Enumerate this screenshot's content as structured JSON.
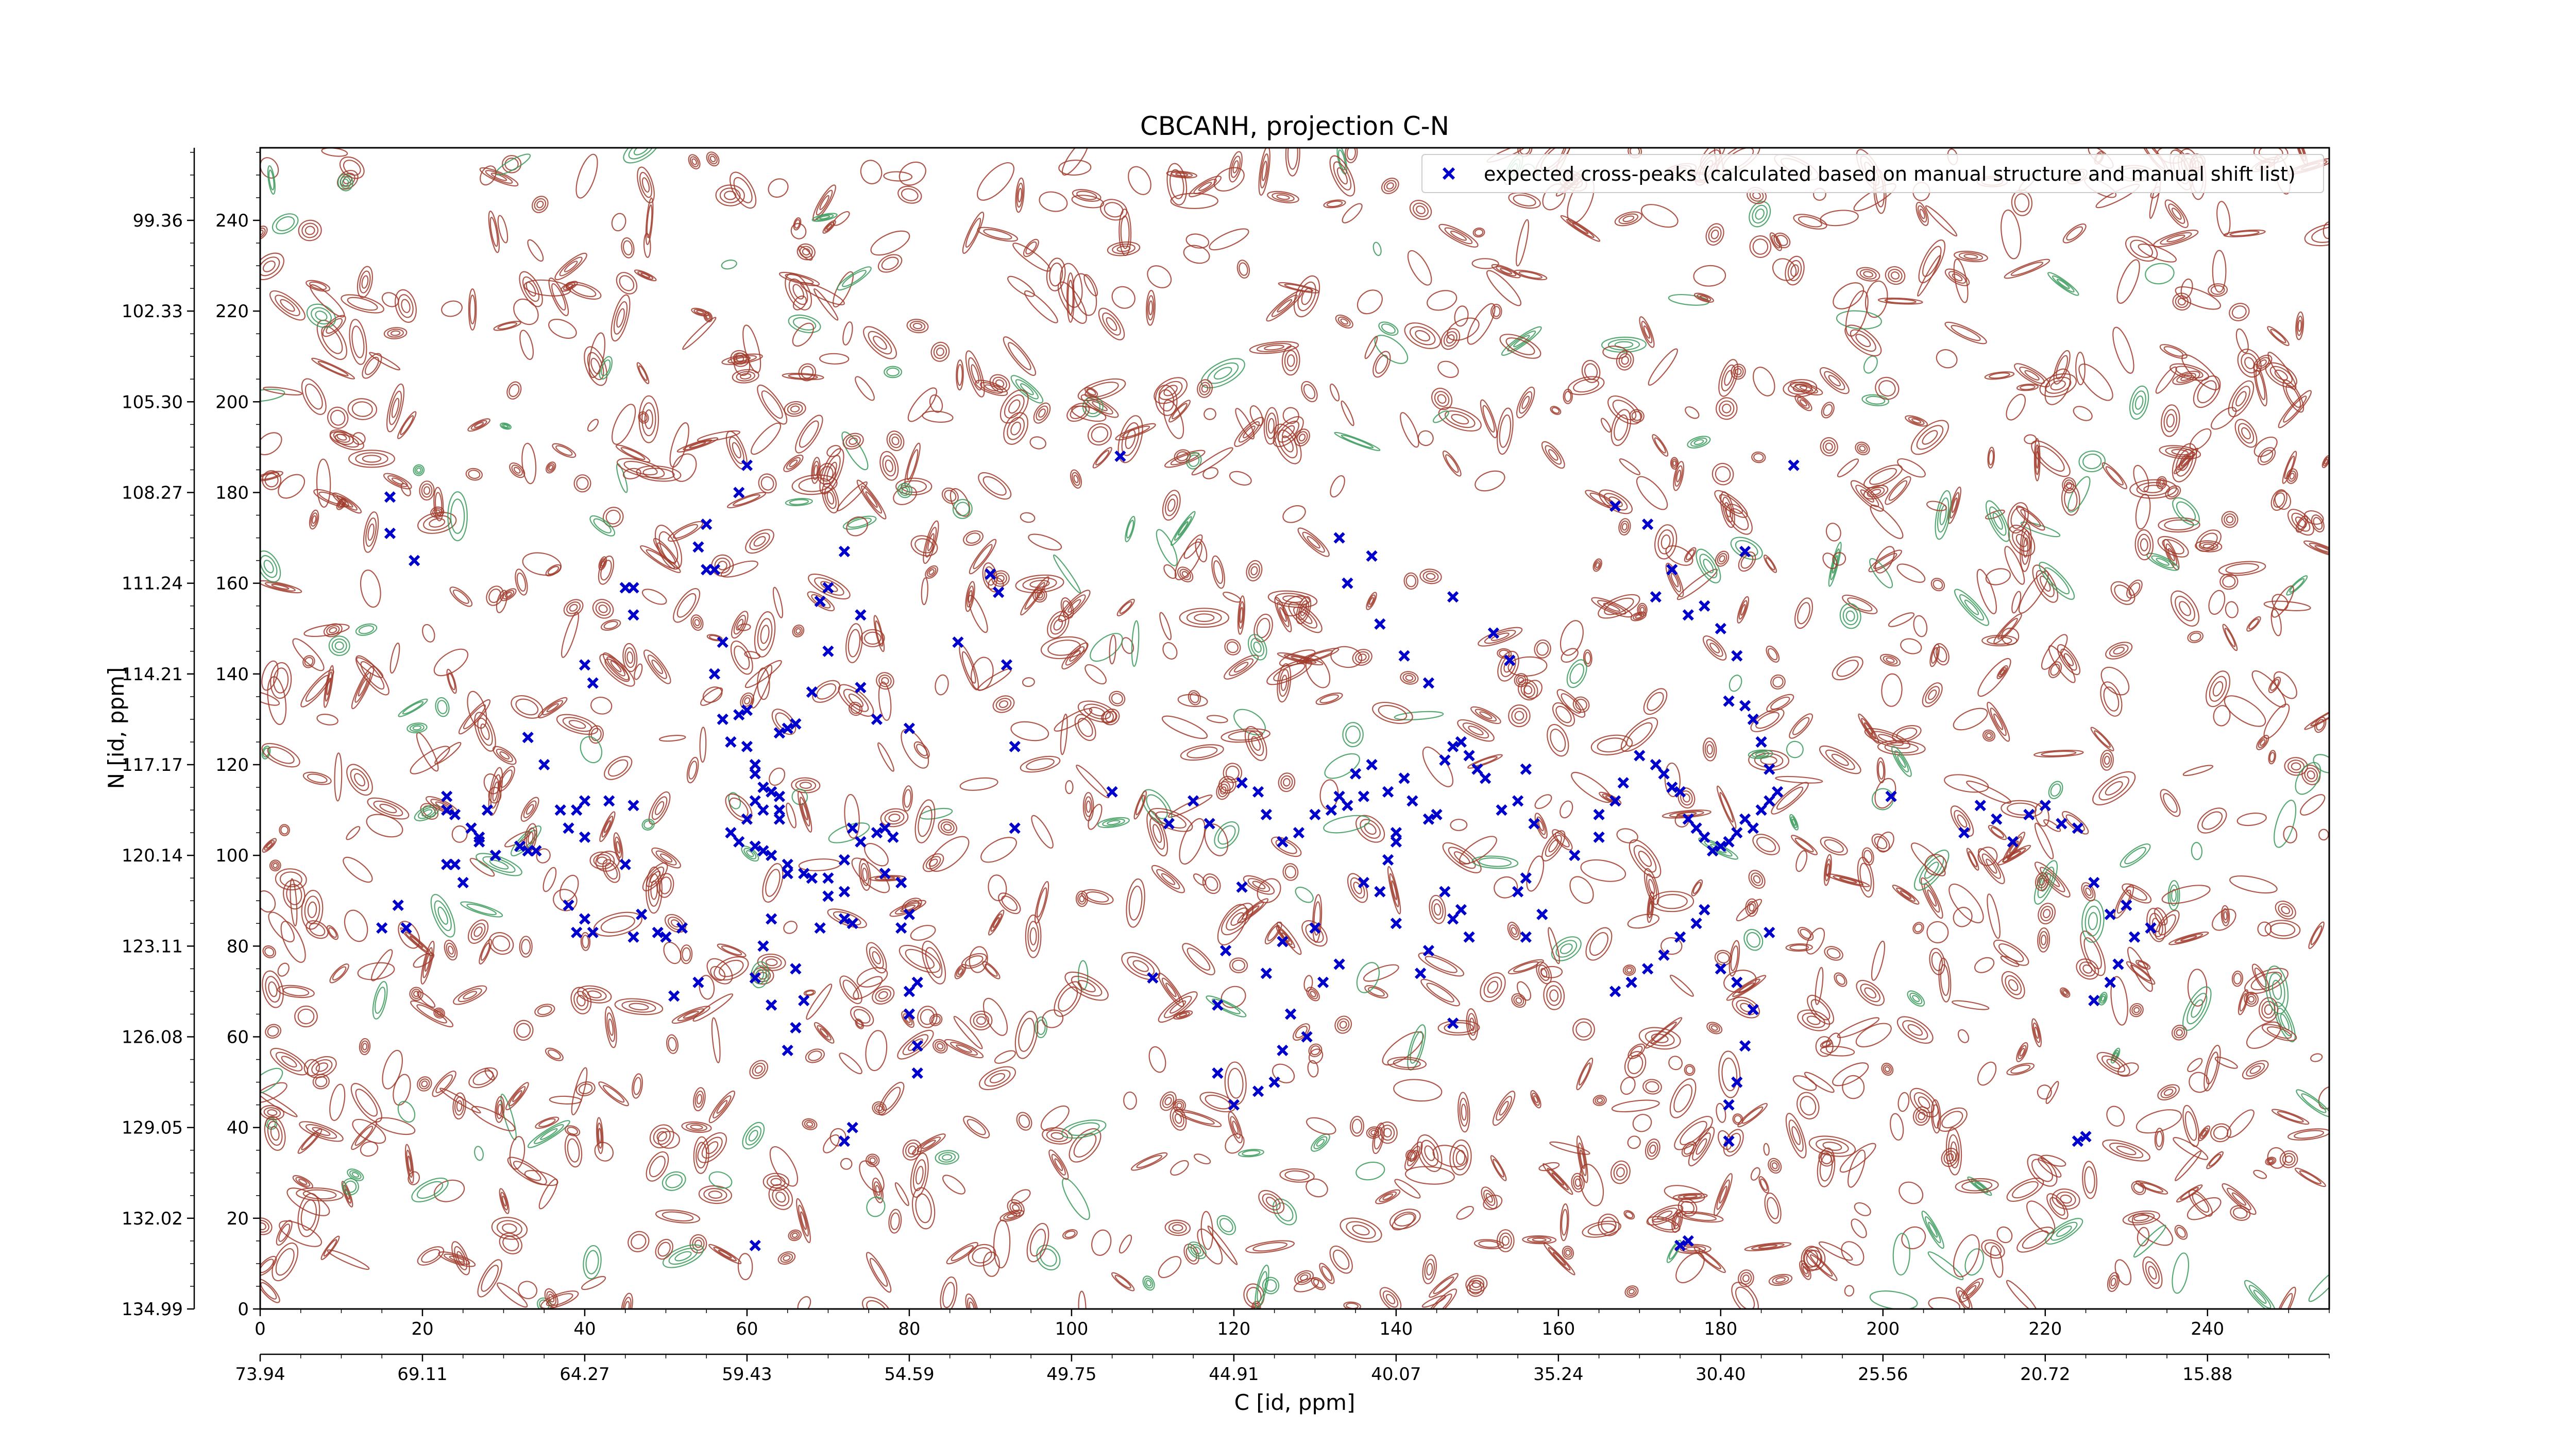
{
  "chart_data": {
    "type": "scatter",
    "title": "CBCANH, projection C-N",
    "xlabel": "C [id, ppm]",
    "ylabel": "N [id, ppm]",
    "xlim": [
      0,
      255
    ],
    "ylim": [
      0,
      256
    ],
    "x_ticks": [
      0,
      20,
      40,
      60,
      80,
      100,
      120,
      140,
      160,
      180,
      200,
      220,
      240
    ],
    "y_ticks": [
      0,
      20,
      40,
      60,
      80,
      100,
      120,
      140,
      160,
      180,
      200,
      220,
      240
    ],
    "x_ppm_ticks": [
      "73.94",
      "69.11",
      "64.27",
      "59.43",
      "54.59",
      "49.75",
      "44.91",
      "40.07",
      "35.24",
      "30.40",
      "25.56",
      "20.72",
      "15.88"
    ],
    "y_ppm_ticks": [
      "134.99",
      "132.02",
      "129.05",
      "126.08",
      "123.11",
      "120.14",
      "117.17",
      "114.21",
      "111.24",
      "108.27",
      "105.30",
      "102.33",
      "99.36"
    ],
    "grid": false,
    "legend_position": "top-right",
    "contour_colors": {
      "positive": "#a03a2a",
      "negative": "#3a9a5a"
    },
    "marker_color": "#0000cc",
    "series": [
      {
        "name": "expected cross-peaks (calculated based on manual structure and manual shift list)",
        "marker": "x",
        "points": [
          [
            16,
            179
          ],
          [
            16,
            171
          ],
          [
            19,
            165
          ],
          [
            17,
            89
          ],
          [
            15,
            84
          ],
          [
            18,
            84
          ],
          [
            23,
            113
          ],
          [
            23,
            110
          ],
          [
            24,
            109
          ],
          [
            26,
            106
          ],
          [
            28,
            110
          ],
          [
            27,
            104
          ],
          [
            27,
            103
          ],
          [
            23,
            98
          ],
          [
            24,
            98
          ],
          [
            25,
            94
          ],
          [
            29,
            100
          ],
          [
            32,
            102
          ],
          [
            33,
            101
          ],
          [
            34,
            101
          ],
          [
            33,
            126
          ],
          [
            35,
            120
          ],
          [
            37,
            110
          ],
          [
            38,
            106
          ],
          [
            40,
            104
          ],
          [
            39,
            110
          ],
          [
            40,
            112
          ],
          [
            40,
            142
          ],
          [
            41,
            138
          ],
          [
            43,
            112
          ],
          [
            38,
            89
          ],
          [
            40,
            86
          ],
          [
            39,
            83
          ],
          [
            41,
            83
          ],
          [
            45,
            159
          ],
          [
            46,
            159
          ],
          [
            46,
            153
          ],
          [
            46,
            111
          ],
          [
            45,
            98
          ],
          [
            47,
            87
          ],
          [
            46,
            82
          ],
          [
            49,
            83
          ],
          [
            50,
            82
          ],
          [
            52,
            84
          ],
          [
            51,
            69
          ],
          [
            54,
            72
          ],
          [
            55,
            163
          ],
          [
            56,
            163
          ],
          [
            54,
            168
          ],
          [
            55,
            173
          ],
          [
            59,
            180
          ],
          [
            60,
            186
          ],
          [
            57,
            147
          ],
          [
            56,
            140
          ],
          [
            57,
            130
          ],
          [
            59,
            131
          ],
          [
            60,
            132
          ],
          [
            58,
            125
          ],
          [
            60,
            124
          ],
          [
            61,
            120
          ],
          [
            61,
            118
          ],
          [
            62,
            115
          ],
          [
            63,
            114
          ],
          [
            64,
            113
          ],
          [
            61,
            112
          ],
          [
            62,
            110
          ],
          [
            64,
            110
          ],
          [
            64,
            108
          ],
          [
            60,
            108
          ],
          [
            58,
            105
          ],
          [
            59,
            103
          ],
          [
            61,
            102
          ],
          [
            62,
            101
          ],
          [
            63,
            100
          ],
          [
            65,
            98
          ],
          [
            67,
            96
          ],
          [
            68,
            95
          ],
          [
            70,
            95
          ],
          [
            72,
            99
          ],
          [
            74,
            103
          ],
          [
            76,
            105
          ],
          [
            77,
            106
          ],
          [
            73,
            106
          ],
          [
            72,
            92
          ],
          [
            70,
            91
          ],
          [
            72,
            86
          ],
          [
            73,
            85
          ],
          [
            69,
            84
          ],
          [
            65,
            96
          ],
          [
            63,
            86
          ],
          [
            62,
            80
          ],
          [
            61,
            73
          ],
          [
            63,
            67
          ],
          [
            65,
            57
          ],
          [
            66,
            62
          ],
          [
            66,
            75
          ],
          [
            67,
            68
          ],
          [
            72,
            37
          ],
          [
            73,
            40
          ],
          [
            61,
            14
          ],
          [
            64,
            127
          ],
          [
            65,
            128
          ],
          [
            66,
            129
          ],
          [
            68,
            136
          ],
          [
            70,
            145
          ],
          [
            70,
            159
          ],
          [
            69,
            156
          ],
          [
            72,
            167
          ],
          [
            74,
            153
          ],
          [
            74,
            137
          ],
          [
            76,
            130
          ],
          [
            80,
            128
          ],
          [
            78,
            104
          ],
          [
            77,
            96
          ],
          [
            79,
            94
          ],
          [
            80,
            87
          ],
          [
            79,
            84
          ],
          [
            81,
            72
          ],
          [
            80,
            70
          ],
          [
            80,
            65
          ],
          [
            81,
            58
          ],
          [
            81,
            52
          ],
          [
            86,
            147
          ],
          [
            91,
            158
          ],
          [
            90,
            162
          ],
          [
            92,
            142
          ],
          [
            93,
            124
          ],
          [
            93,
            106
          ],
          [
            105,
            114
          ],
          [
            106,
            188
          ],
          [
            112,
            107
          ],
          [
            115,
            112
          ],
          [
            117,
            107
          ],
          [
            121,
            116
          ],
          [
            123,
            114
          ],
          [
            124,
            109
          ],
          [
            126,
            103
          ],
          [
            128,
            105
          ],
          [
            130,
            109
          ],
          [
            132,
            110
          ],
          [
            133,
            113
          ],
          [
            134,
            111
          ],
          [
            136,
            113
          ],
          [
            135,
            118
          ],
          [
            137,
            120
          ],
          [
            139,
            114
          ],
          [
            141,
            117
          ],
          [
            142,
            112
          ],
          [
            140,
            103
          ],
          [
            139,
            99
          ],
          [
            140,
            105
          ],
          [
            144,
            108
          ],
          [
            145,
            109
          ],
          [
            146,
            121
          ],
          [
            147,
            124
          ],
          [
            148,
            125
          ],
          [
            149,
            122
          ],
          [
            150,
            119
          ],
          [
            151,
            117
          ],
          [
            153,
            110
          ],
          [
            155,
            112
          ],
          [
            156,
            119
          ],
          [
            157,
            107
          ],
          [
            156,
            95
          ],
          [
            155,
            92
          ],
          [
            156,
            82
          ],
          [
            158,
            87
          ],
          [
            143,
            74
          ],
          [
            144,
            79
          ],
          [
            140,
            85
          ],
          [
            138,
            92
          ],
          [
            136,
            94
          ],
          [
            133,
            76
          ],
          [
            131,
            72
          ],
          [
            129,
            60
          ],
          [
            127,
            65
          ],
          [
            126,
            57
          ],
          [
            125,
            50
          ],
          [
            123,
            48
          ],
          [
            120,
            45
          ],
          [
            118,
            67
          ],
          [
            118,
            52
          ],
          [
            110,
            73
          ],
          [
            121,
            93
          ],
          [
            119,
            79
          ],
          [
            124,
            74
          ],
          [
            126,
            81
          ],
          [
            130,
            84
          ],
          [
            133,
            170
          ],
          [
            134,
            160
          ],
          [
            137,
            166
          ],
          [
            138,
            151
          ],
          [
            141,
            144
          ],
          [
            144,
            138
          ],
          [
            147,
            157
          ],
          [
            152,
            149
          ],
          [
            154,
            143
          ],
          [
            148,
            88
          ],
          [
            146,
            92
          ],
          [
            147,
            86
          ],
          [
            149,
            82
          ],
          [
            162,
            100
          ],
          [
            165,
            104
          ],
          [
            165,
            109
          ],
          [
            167,
            112
          ],
          [
            168,
            116
          ],
          [
            170,
            122
          ],
          [
            172,
            120
          ],
          [
            173,
            118
          ],
          [
            174,
            115
          ],
          [
            175,
            114
          ],
          [
            176,
            108
          ],
          [
            177,
            106
          ],
          [
            178,
            104
          ],
          [
            179,
            101
          ],
          [
            180,
            102
          ],
          [
            181,
            103
          ],
          [
            182,
            105
          ],
          [
            183,
            108
          ],
          [
            184,
            106
          ],
          [
            185,
            110
          ],
          [
            186,
            112
          ],
          [
            187,
            114
          ],
          [
            186,
            119
          ],
          [
            185,
            125
          ],
          [
            184,
            130
          ],
          [
            183,
            133
          ],
          [
            181,
            134
          ],
          [
            182,
            144
          ],
          [
            180,
            150
          ],
          [
            178,
            155
          ],
          [
            176,
            153
          ],
          [
            172,
            157
          ],
          [
            174,
            163
          ],
          [
            171,
            173
          ],
          [
            167,
            177
          ],
          [
            183,
            167
          ],
          [
            189,
            186
          ],
          [
            178,
            88
          ],
          [
            177,
            85
          ],
          [
            175,
            82
          ],
          [
            173,
            78
          ],
          [
            171,
            75
          ],
          [
            169,
            72
          ],
          [
            167,
            70
          ],
          [
            180,
            75
          ],
          [
            182,
            72
          ],
          [
            184,
            66
          ],
          [
            183,
            58
          ],
          [
            182,
            50
          ],
          [
            181,
            45
          ],
          [
            175,
            14
          ],
          [
            176,
            15
          ],
          [
            181,
            37
          ],
          [
            210,
            105
          ],
          [
            212,
            111
          ],
          [
            214,
            108
          ],
          [
            216,
            103
          ],
          [
            218,
            109
          ],
          [
            220,
            111
          ],
          [
            222,
            107
          ],
          [
            224,
            106
          ],
          [
            226,
            94
          ],
          [
            228,
            87
          ],
          [
            230,
            89
          ],
          [
            231,
            82
          ],
          [
            233,
            84
          ],
          [
            229,
            76
          ],
          [
            228,
            72
          ],
          [
            226,
            68
          ],
          [
            224,
            37
          ],
          [
            225,
            38
          ],
          [
            201,
            113
          ],
          [
            147,
            63
          ],
          [
            186,
            83
          ]
        ]
      }
    ]
  }
}
